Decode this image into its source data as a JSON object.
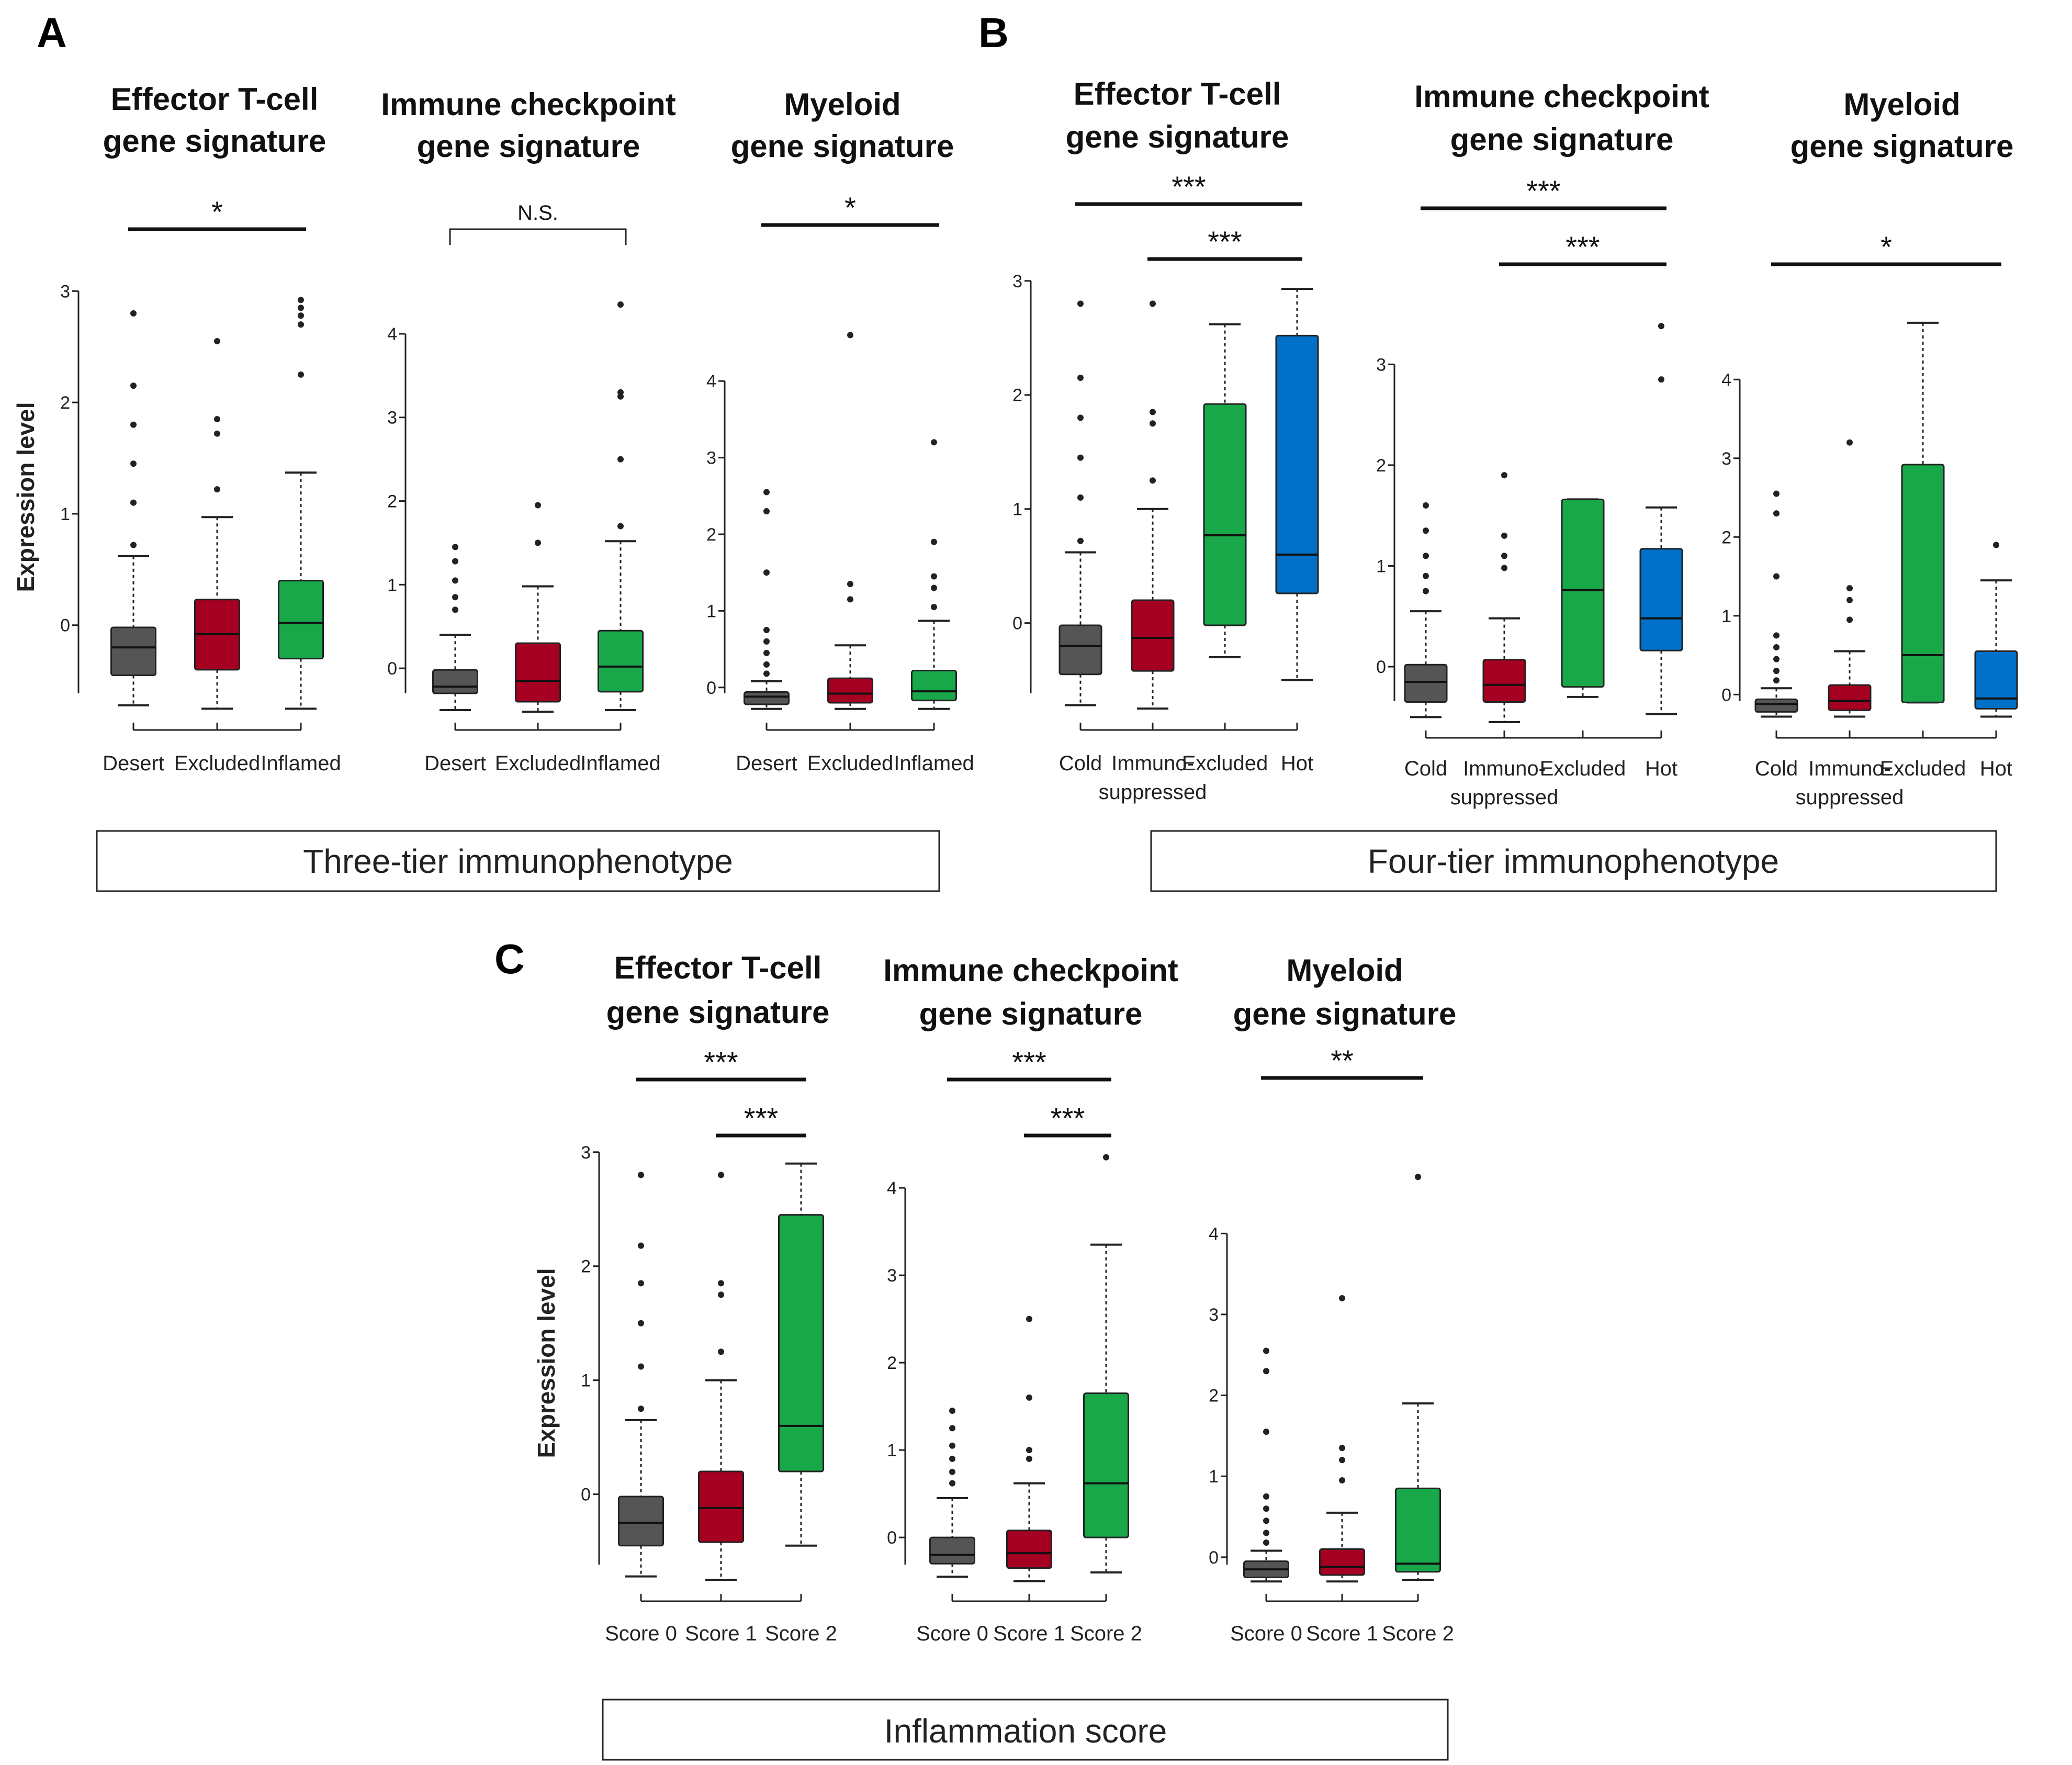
{
  "panel_letters": [
    "A",
    "B",
    "C"
  ],
  "y_axis_label": "Expression level",
  "colors": {
    "box_0": "#555555",
    "box_1": "#a50021",
    "box_2": "#18a84a",
    "box_3": "#0070c8",
    "outline": "#222222"
  },
  "chart_data": [
    {
      "type": "box",
      "id": "A1",
      "panel": "A",
      "title": [
        "Effector T-cell",
        "gene signature"
      ],
      "categories": [
        "Desert",
        "Excluded",
        "Inflamed"
      ],
      "ylim": [
        -0.8,
        3.1
      ],
      "yticks": [
        0,
        1,
        2,
        3
      ],
      "ylabel": "Expression level",
      "boxes": [
        {
          "q1": -0.45,
          "median": -0.2,
          "q3": -0.02,
          "lo": -0.72,
          "hi": 0.62,
          "outliers": [
            2.8,
            2.15,
            1.8,
            1.45,
            1.1,
            0.72
          ],
          "color": "box_0"
        },
        {
          "q1": -0.4,
          "median": -0.08,
          "q3": 0.23,
          "lo": -0.75,
          "hi": 0.97,
          "outliers": [
            2.55,
            1.85,
            1.72,
            1.22
          ],
          "color": "box_1"
        },
        {
          "q1": -0.3,
          "median": 0.02,
          "q3": 0.4,
          "lo": -0.75,
          "hi": 1.37,
          "outliers": [
            2.92,
            2.85,
            2.78,
            2.7,
            2.25
          ],
          "color": "box_2"
        }
      ],
      "brackets": [
        {
          "from": 0,
          "to": 2,
          "label": "*",
          "level": 0,
          "style": "line"
        }
      ]
    },
    {
      "type": "box",
      "id": "A2",
      "panel": "A",
      "title": [
        "Immune checkpoint",
        "gene signature"
      ],
      "categories": [
        "Desert",
        "Excluded",
        "Inflamed"
      ],
      "ylim": [
        -0.55,
        4.3
      ],
      "yticks": [
        0,
        1,
        2,
        3,
        4
      ],
      "boxes": [
        {
          "q1": -0.3,
          "median": -0.22,
          "q3": -0.02,
          "lo": -0.5,
          "hi": 0.4,
          "outliers": [
            1.45,
            1.28,
            1.05,
            0.85,
            0.7
          ],
          "color": "box_0"
        },
        {
          "q1": -0.4,
          "median": -0.15,
          "q3": 0.3,
          "lo": -0.52,
          "hi": 0.98,
          "outliers": [
            1.95,
            1.5
          ],
          "color": "box_1"
        },
        {
          "q1": -0.28,
          "median": 0.02,
          "q3": 0.45,
          "lo": -0.5,
          "hi": 1.52,
          "outliers": [
            4.35,
            3.3,
            3.25,
            2.5,
            1.7
          ],
          "color": "box_2"
        }
      ],
      "brackets": [
        {
          "from": 0,
          "to": 2,
          "label": "N.S.",
          "level": 0,
          "style": "bracket"
        }
      ]
    },
    {
      "type": "box",
      "id": "A3",
      "panel": "A",
      "title": [
        "Myeloid",
        "gene signature"
      ],
      "categories": [
        "Desert",
        "Excluded",
        "Inflamed"
      ],
      "ylim": [
        -0.35,
        4.5
      ],
      "yticks": [
        0,
        1,
        2,
        3,
        4
      ],
      "boxes": [
        {
          "q1": -0.22,
          "median": -0.12,
          "q3": -0.06,
          "lo": -0.28,
          "hi": 0.08,
          "outliers": [
            2.55,
            2.3,
            1.5,
            0.75,
            0.6,
            0.45,
            0.3,
            0.18
          ],
          "color": "box_0"
        },
        {
          "q1": -0.2,
          "median": -0.08,
          "q3": 0.12,
          "lo": -0.28,
          "hi": 0.55,
          "outliers": [
            4.6,
            1.35,
            1.15
          ],
          "color": "box_1"
        },
        {
          "q1": -0.17,
          "median": -0.05,
          "q3": 0.22,
          "lo": -0.28,
          "hi": 0.87,
          "outliers": [
            3.2,
            1.9,
            1.45,
            1.3,
            1.05
          ],
          "color": "box_2"
        }
      ],
      "brackets": [
        {
          "from": 0,
          "to": 2,
          "label": "*",
          "level": 0,
          "style": "line"
        }
      ]
    },
    {
      "type": "box",
      "id": "B1",
      "panel": "B",
      "title": [
        "Effector T-cell",
        "gene signature"
      ],
      "categories": [
        "Cold",
        "Immuno-",
        "Excluded",
        "Hot"
      ],
      "category_sublabels": [
        "",
        "suppressed",
        "",
        ""
      ],
      "ylim": [
        -0.8,
        3.1
      ],
      "yticks": [
        0,
        1,
        2,
        3
      ],
      "boxes": [
        {
          "q1": -0.45,
          "median": -0.2,
          "q3": -0.02,
          "lo": -0.72,
          "hi": 0.62,
          "outliers": [
            2.8,
            2.15,
            1.8,
            1.45,
            1.1,
            0.72
          ],
          "color": "box_0"
        },
        {
          "q1": -0.42,
          "median": -0.13,
          "q3": 0.2,
          "lo": -0.75,
          "hi": 1.0,
          "outliers": [
            2.8,
            1.85,
            1.75,
            1.25
          ],
          "color": "box_1"
        },
        {
          "q1": -0.02,
          "median": 0.77,
          "q3": 1.92,
          "lo": -0.3,
          "hi": 2.62,
          "outliers": [],
          "color": "box_2"
        },
        {
          "q1": 0.26,
          "median": 0.6,
          "q3": 2.52,
          "lo": -0.5,
          "hi": 2.93,
          "outliers": [],
          "color": "box_3"
        }
      ],
      "brackets": [
        {
          "from": 0,
          "to": 3,
          "label": "***",
          "level": 1,
          "style": "line"
        },
        {
          "from": 1,
          "to": 3,
          "label": "***",
          "level": 0,
          "style": "line"
        }
      ]
    },
    {
      "type": "box",
      "id": "B2",
      "panel": "B",
      "title": [
        "Immune checkpoint",
        "gene signature"
      ],
      "categories": [
        "Cold",
        "Immuno-",
        "Excluded",
        "Hot"
      ],
      "category_sublabels": [
        "",
        "suppressed",
        "",
        ""
      ],
      "ylim": [
        -0.55,
        3.5
      ],
      "yticks": [
        0,
        1,
        2,
        3
      ],
      "boxes": [
        {
          "q1": -0.35,
          "median": -0.15,
          "q3": 0.02,
          "lo": -0.5,
          "hi": 0.55,
          "outliers": [
            1.6,
            1.35,
            1.1,
            0.9,
            0.75
          ],
          "color": "box_0"
        },
        {
          "q1": -0.35,
          "median": -0.18,
          "q3": 0.07,
          "lo": -0.55,
          "hi": 0.48,
          "outliers": [
            1.9,
            1.3,
            1.1,
            0.98
          ],
          "color": "box_1"
        },
        {
          "q1": -0.2,
          "median": 0.76,
          "q3": 1.66,
          "lo": -0.3,
          "hi": 1.66,
          "outliers": [],
          "color": "box_2"
        },
        {
          "q1": 0.16,
          "median": 0.48,
          "q3": 1.17,
          "lo": -0.47,
          "hi": 1.58,
          "outliers": [
            3.38,
            2.85
          ],
          "color": "box_3"
        }
      ],
      "brackets": [
        {
          "from": 0,
          "to": 3,
          "label": "***",
          "level": 1,
          "style": "line"
        },
        {
          "from": 1,
          "to": 3,
          "label": "***",
          "level": 0,
          "style": "line"
        }
      ]
    },
    {
      "type": "box",
      "id": "B3",
      "panel": "B",
      "title": [
        "Myeloid",
        "gene signature"
      ],
      "categories": [
        "Cold",
        "Immuno-",
        "Excluded",
        "Hot"
      ],
      "category_sublabels": [
        "",
        "suppressed",
        "",
        ""
      ],
      "ylim": [
        -0.35,
        4.5
      ],
      "yticks": [
        0,
        1,
        2,
        3,
        4
      ],
      "boxes": [
        {
          "q1": -0.22,
          "median": -0.12,
          "q3": -0.06,
          "lo": -0.28,
          "hi": 0.08,
          "outliers": [
            2.55,
            2.3,
            1.5,
            0.75,
            0.6,
            0.45,
            0.3,
            0.18
          ],
          "color": "box_0"
        },
        {
          "q1": -0.2,
          "median": -0.08,
          "q3": 0.12,
          "lo": -0.28,
          "hi": 0.55,
          "outliers": [
            3.2,
            1.35,
            1.2,
            0.95
          ],
          "color": "box_1"
        },
        {
          "q1": -0.1,
          "median": 0.5,
          "q3": 2.92,
          "lo": -0.1,
          "hi": 4.72,
          "outliers": [],
          "color": "box_2"
        },
        {
          "q1": -0.18,
          "median": -0.05,
          "q3": 0.55,
          "lo": -0.28,
          "hi": 1.45,
          "outliers": [
            1.9
          ],
          "color": "box_3"
        }
      ],
      "brackets": [
        {
          "from": 0,
          "to": 3,
          "label": "*",
          "level": 0,
          "style": "line"
        }
      ]
    },
    {
      "type": "box",
      "id": "C1",
      "panel": "C",
      "title": [
        "Effector T-cell",
        "gene signature"
      ],
      "categories": [
        "Score 0",
        "Score 1",
        "Score 2"
      ],
      "ylim": [
        -0.8,
        3.1
      ],
      "yticks": [
        0,
        1,
        2,
        3
      ],
      "ylabel": "Expression level",
      "boxes": [
        {
          "q1": -0.45,
          "median": -0.25,
          "q3": -0.02,
          "lo": -0.72,
          "hi": 0.65,
          "outliers": [
            2.8,
            2.18,
            1.85,
            1.5,
            1.12,
            0.75
          ],
          "color": "box_0"
        },
        {
          "q1": -0.42,
          "median": -0.12,
          "q3": 0.2,
          "lo": -0.75,
          "hi": 1.0,
          "outliers": [
            2.8,
            1.85,
            1.75,
            1.25
          ],
          "color": "box_1"
        },
        {
          "q1": 0.2,
          "median": 0.6,
          "q3": 2.45,
          "lo": -0.45,
          "hi": 2.9,
          "outliers": [],
          "color": "box_2"
        }
      ],
      "brackets": [
        {
          "from": 0,
          "to": 2,
          "label": "***",
          "level": 1,
          "style": "line"
        },
        {
          "from": 1,
          "to": 2,
          "label": "***",
          "level": 0,
          "style": "line"
        }
      ]
    },
    {
      "type": "box",
      "id": "C2",
      "panel": "C",
      "title": [
        "Immune checkpoint",
        "gene signature"
      ],
      "categories": [
        "Score 0",
        "Score 1",
        "Score 2"
      ],
      "ylim": [
        -0.55,
        4.3
      ],
      "yticks": [
        0,
        1,
        2,
        3,
        4
      ],
      "boxes": [
        {
          "q1": -0.3,
          "median": -0.2,
          "q3": 0.0,
          "lo": -0.45,
          "hi": 0.45,
          "outliers": [
            1.45,
            1.25,
            1.05,
            0.9,
            0.75,
            0.62
          ],
          "color": "box_0"
        },
        {
          "q1": -0.35,
          "median": -0.18,
          "q3": 0.08,
          "lo": -0.5,
          "hi": 0.62,
          "outliers": [
            2.5,
            1.6,
            1.0,
            0.9
          ],
          "color": "box_1"
        },
        {
          "q1": 0.0,
          "median": 0.62,
          "q3": 1.65,
          "lo": -0.4,
          "hi": 3.35,
          "outliers": [
            4.35
          ],
          "color": "box_2"
        }
      ],
      "brackets": [
        {
          "from": 0,
          "to": 2,
          "label": "***",
          "level": 1,
          "style": "line"
        },
        {
          "from": 1,
          "to": 2,
          "label": "***",
          "level": 0,
          "style": "line"
        }
      ]
    },
    {
      "type": "box",
      "id": "C3",
      "panel": "C",
      "title": [
        "Myeloid",
        "gene signature"
      ],
      "categories": [
        "Score 0",
        "Score 1",
        "Score 2"
      ],
      "ylim": [
        -0.35,
        4.5
      ],
      "yticks": [
        0,
        1,
        2,
        3,
        4
      ],
      "boxes": [
        {
          "q1": -0.25,
          "median": -0.15,
          "q3": -0.05,
          "lo": -0.3,
          "hi": 0.08,
          "outliers": [
            2.55,
            2.3,
            1.55,
            0.75,
            0.6,
            0.45,
            0.3,
            0.18
          ],
          "color": "box_0"
        },
        {
          "q1": -0.22,
          "median": -0.12,
          "q3": 0.1,
          "lo": -0.3,
          "hi": 0.55,
          "outliers": [
            3.2,
            1.35,
            1.2,
            0.95
          ],
          "color": "box_1"
        },
        {
          "q1": -0.18,
          "median": -0.08,
          "q3": 0.85,
          "lo": -0.28,
          "hi": 1.9,
          "outliers": [
            4.7
          ],
          "color": "box_2"
        }
      ],
      "brackets": [
        {
          "from": 0,
          "to": 2,
          "label": "**",
          "level": 0,
          "style": "line"
        }
      ]
    }
  ],
  "tier_labels": {
    "A": "Three-tier immunophenotype",
    "B": "Four-tier immunophenotype",
    "C": "Inflammation score"
  }
}
